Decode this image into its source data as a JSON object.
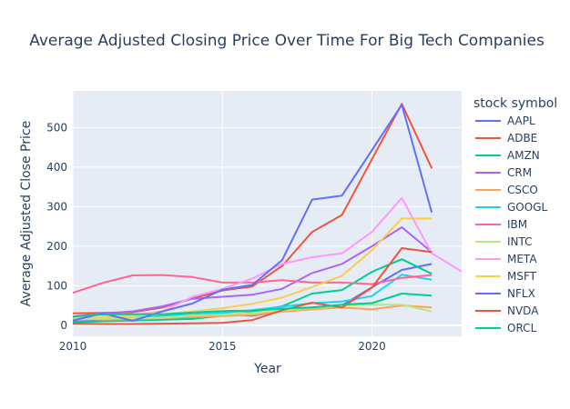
{
  "chart_data": {
    "type": "line",
    "title": "Average Adjusted Closing Price Over Time For Big Tech Companies",
    "xlabel": "Year",
    "ylabel": "Average Adjusted Close Price",
    "xlim": [
      2010,
      2023
    ],
    "ylim": [
      -28,
      593
    ],
    "x_ticks": [
      2010,
      2015,
      2020
    ],
    "y_ticks": [
      0,
      100,
      200,
      300,
      400,
      500
    ],
    "grid": true,
    "plot_background": "#e5ecf6",
    "legend_title": "stock symbol",
    "legend_placement": "right",
    "x": [
      2010,
      2011,
      2012,
      2013,
      2014,
      2015,
      2016,
      2017,
      2018,
      2019,
      2020,
      2021,
      2022,
      2023
    ],
    "series": [
      {
        "name": "AAPL",
        "color": "#636efa",
        "values": [
          9,
          12,
          18,
          15,
          21,
          26,
          24,
          36,
          45,
          50,
          96,
          140,
          155,
          null
        ]
      },
      {
        "name": "ADBE",
        "color": "#EF553B",
        "values": [
          30,
          31,
          33,
          45,
          68,
          88,
          98,
          150,
          236,
          279,
          420,
          560,
          397,
          null
        ]
      },
      {
        "name": "AMZN",
        "color": "#00cc96",
        "values": [
          7,
          10,
          12,
          14,
          16,
          24,
          34,
          48,
          80,
          89,
          135,
          167,
          130,
          null
        ]
      },
      {
        "name": "CRM",
        "color": "#ab63fa",
        "values": [
          22,
          30,
          35,
          48,
          67,
          72,
          77,
          92,
          132,
          155,
          200,
          248,
          185,
          null
        ]
      },
      {
        "name": "CSCO",
        "color": "#FFA15A",
        "values": [
          18,
          14,
          15,
          18,
          21,
          23,
          26,
          34,
          40,
          45,
          40,
          50,
          45,
          null
        ]
      },
      {
        "name": "GOOGL",
        "color": "#19d3f3",
        "values": [
          15,
          16,
          18,
          24,
          28,
          31,
          38,
          47,
          56,
          60,
          74,
          128,
          115,
          null
        ]
      },
      {
        "name": "IBM",
        "color": "#FF6692",
        "values": [
          82,
          107,
          126,
          127,
          122,
          108,
          108,
          114,
          108,
          108,
          104,
          120,
          127,
          null
        ]
      },
      {
        "name": "INTC",
        "color": "#B6E880",
        "values": [
          14,
          16,
          18,
          19,
          25,
          27,
          31,
          37,
          44,
          50,
          52,
          52,
          35,
          null
        ]
      },
      {
        "name": "META",
        "color": "#FF97FF",
        "values": [
          null,
          null,
          26,
          35,
          72,
          92,
          118,
          155,
          172,
          182,
          236,
          322,
          182,
          136
        ]
      },
      {
        "name": "MSFT",
        "color": "#FECB52",
        "values": [
          19,
          20,
          23,
          28,
          35,
          43,
          54,
          70,
          97,
          125,
          190,
          270,
          270,
          null
        ]
      },
      {
        "name": "NFLX",
        "color": "#636efa",
        "values": [
          12,
          30,
          11,
          35,
          55,
          90,
          102,
          165,
          318,
          328,
          443,
          558,
          285,
          null
        ]
      },
      {
        "name": "NVDA",
        "color": "#EF553B",
        "values": [
          4,
          3,
          3,
          4,
          5,
          6,
          13,
          38,
          57,
          45,
          95,
          195,
          185,
          null
        ]
      },
      {
        "name": "ORCL",
        "color": "#00cc96",
        "values": [
          22,
          27,
          28,
          28,
          32,
          36,
          37,
          42,
          45,
          52,
          56,
          80,
          75,
          null
        ]
      }
    ]
  }
}
